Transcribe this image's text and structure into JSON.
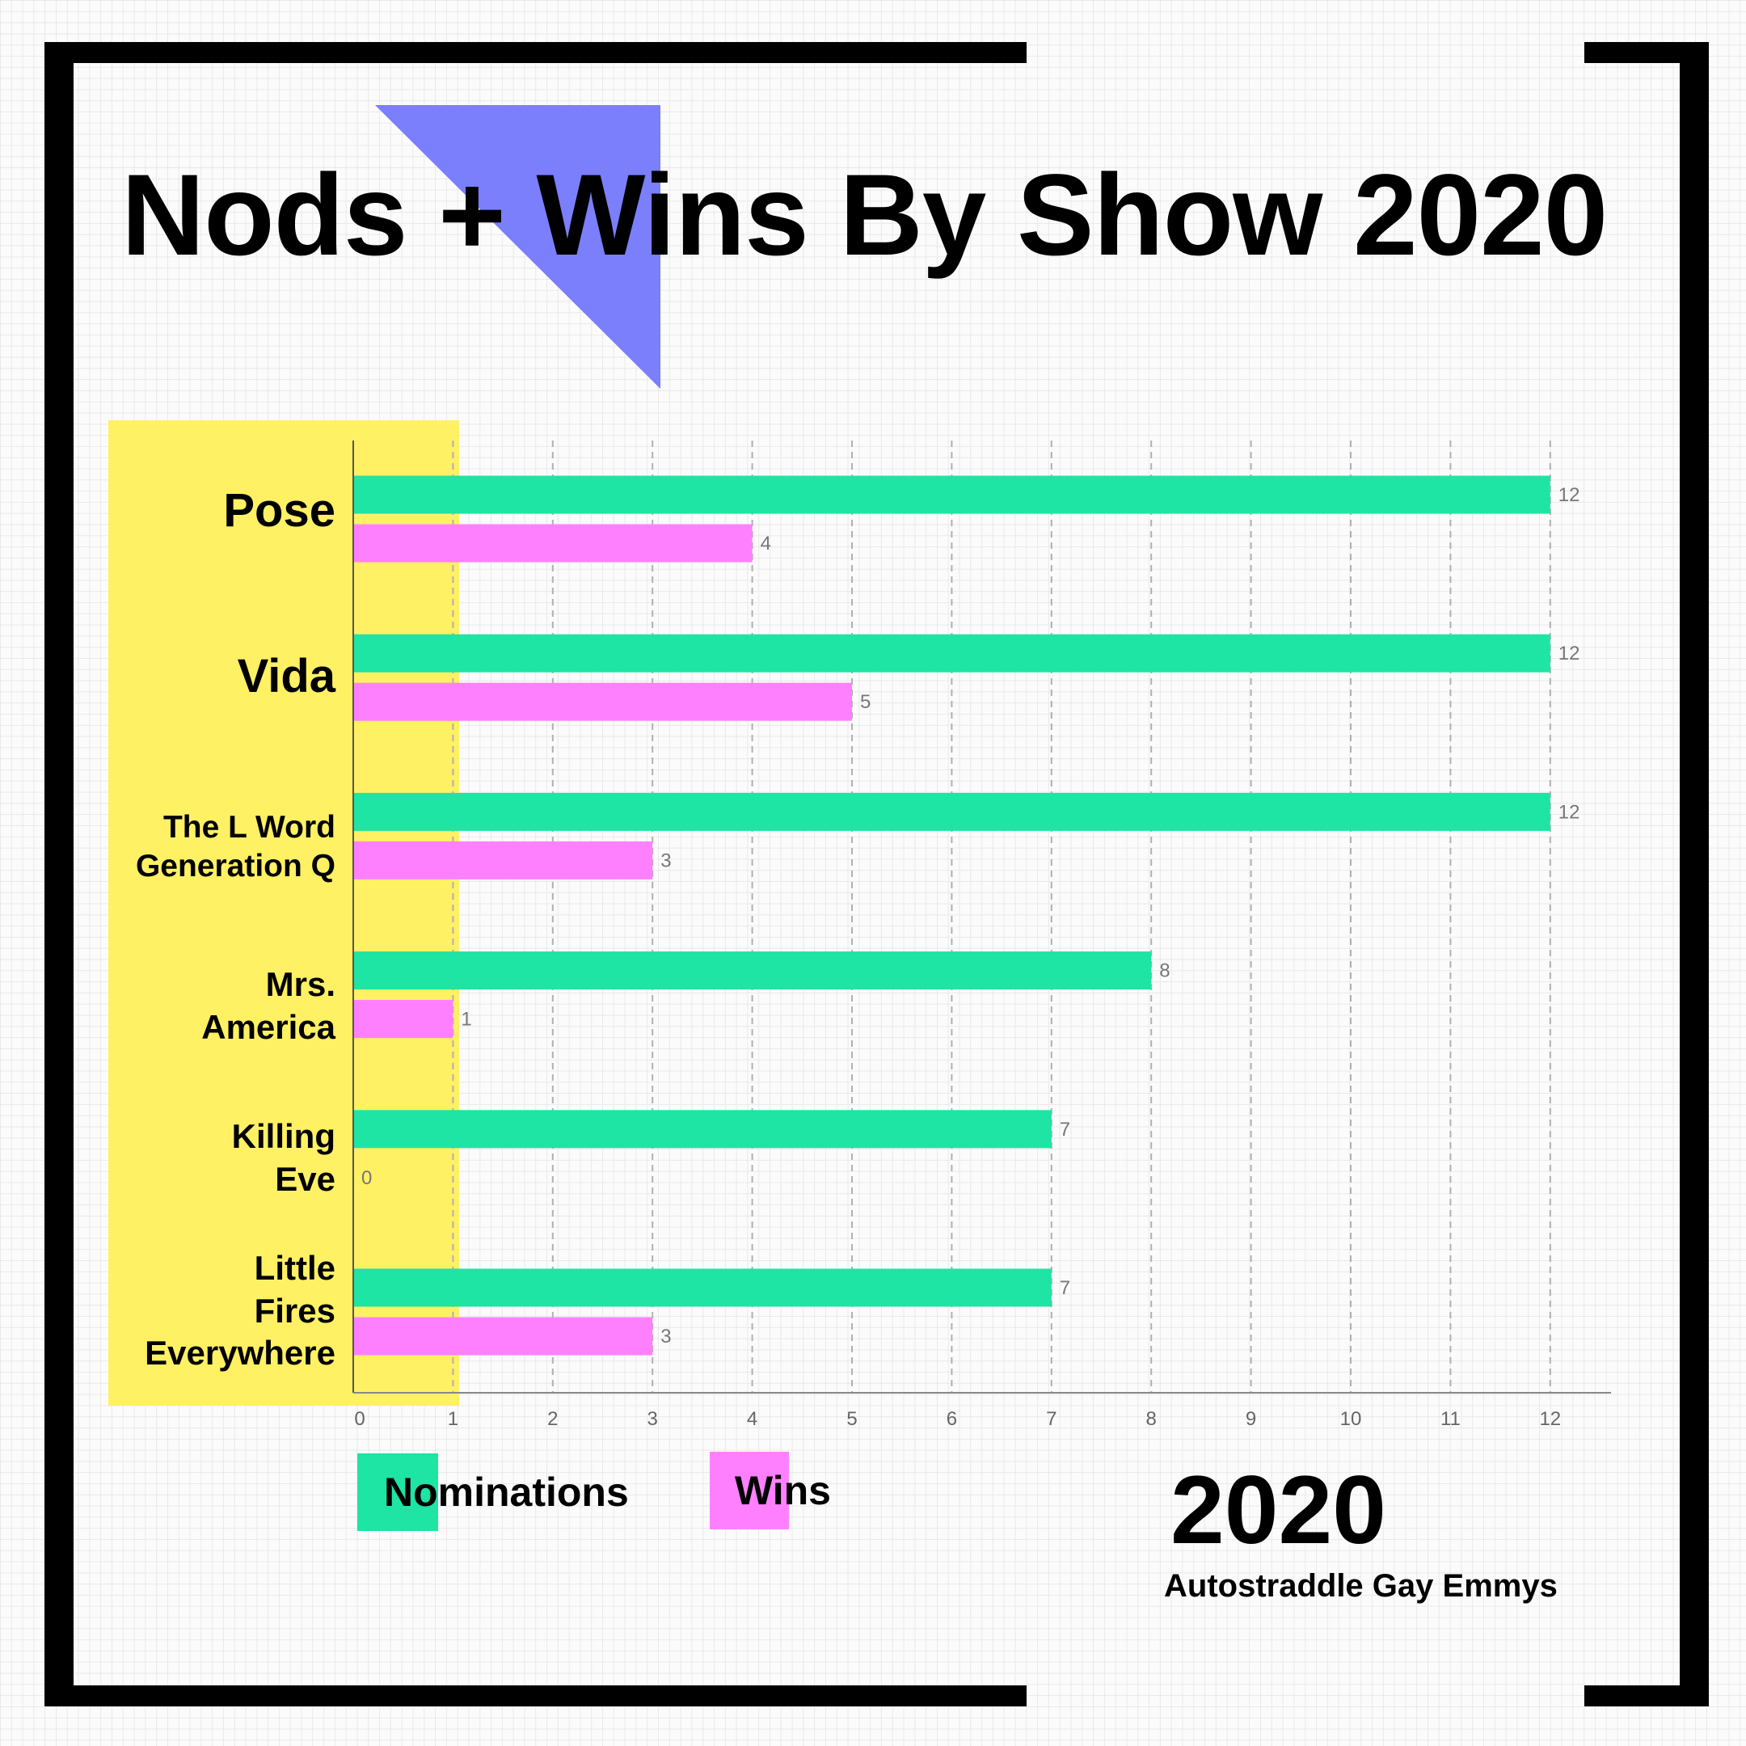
{
  "title": "Nods + Wins By Show 2020",
  "year": "2020",
  "subtitle": "Autostraddle Gay Emmys",
  "colors": {
    "nominations": "#1ee4a4",
    "wins": "#ff80ff",
    "highlight": "#fff064",
    "triangle": "#7b7ffb",
    "frame": "#000000"
  },
  "legend": [
    {
      "label": "Nominations",
      "color": "#1ee4a4"
    },
    {
      "label": "Wins",
      "color": "#ff80ff"
    }
  ],
  "chart_data": {
    "type": "bar",
    "orientation": "horizontal",
    "title": "Nods + Wins By Show 2020",
    "categories": [
      "Pose",
      "Vida",
      "The L Word \nGeneration Q",
      "Mrs.\nAmerica",
      "Killing\nEve",
      "Little\nFires\nEverywhere"
    ],
    "series": [
      {
        "name": "Nominations",
        "values": [
          12,
          12,
          12,
          8,
          7,
          7
        ]
      },
      {
        "name": "Wins",
        "values": [
          4,
          5,
          3,
          1,
          0,
          3
        ]
      }
    ],
    "x_ticks": [
      "0",
      "1",
      "2",
      "3",
      "4",
      "5",
      "6",
      "7",
      "8",
      "9",
      "10",
      "11",
      "12"
    ],
    "xlim": [
      0,
      12.6
    ],
    "grid": "vertical dashed",
    "legend_position": "bottom-left"
  }
}
